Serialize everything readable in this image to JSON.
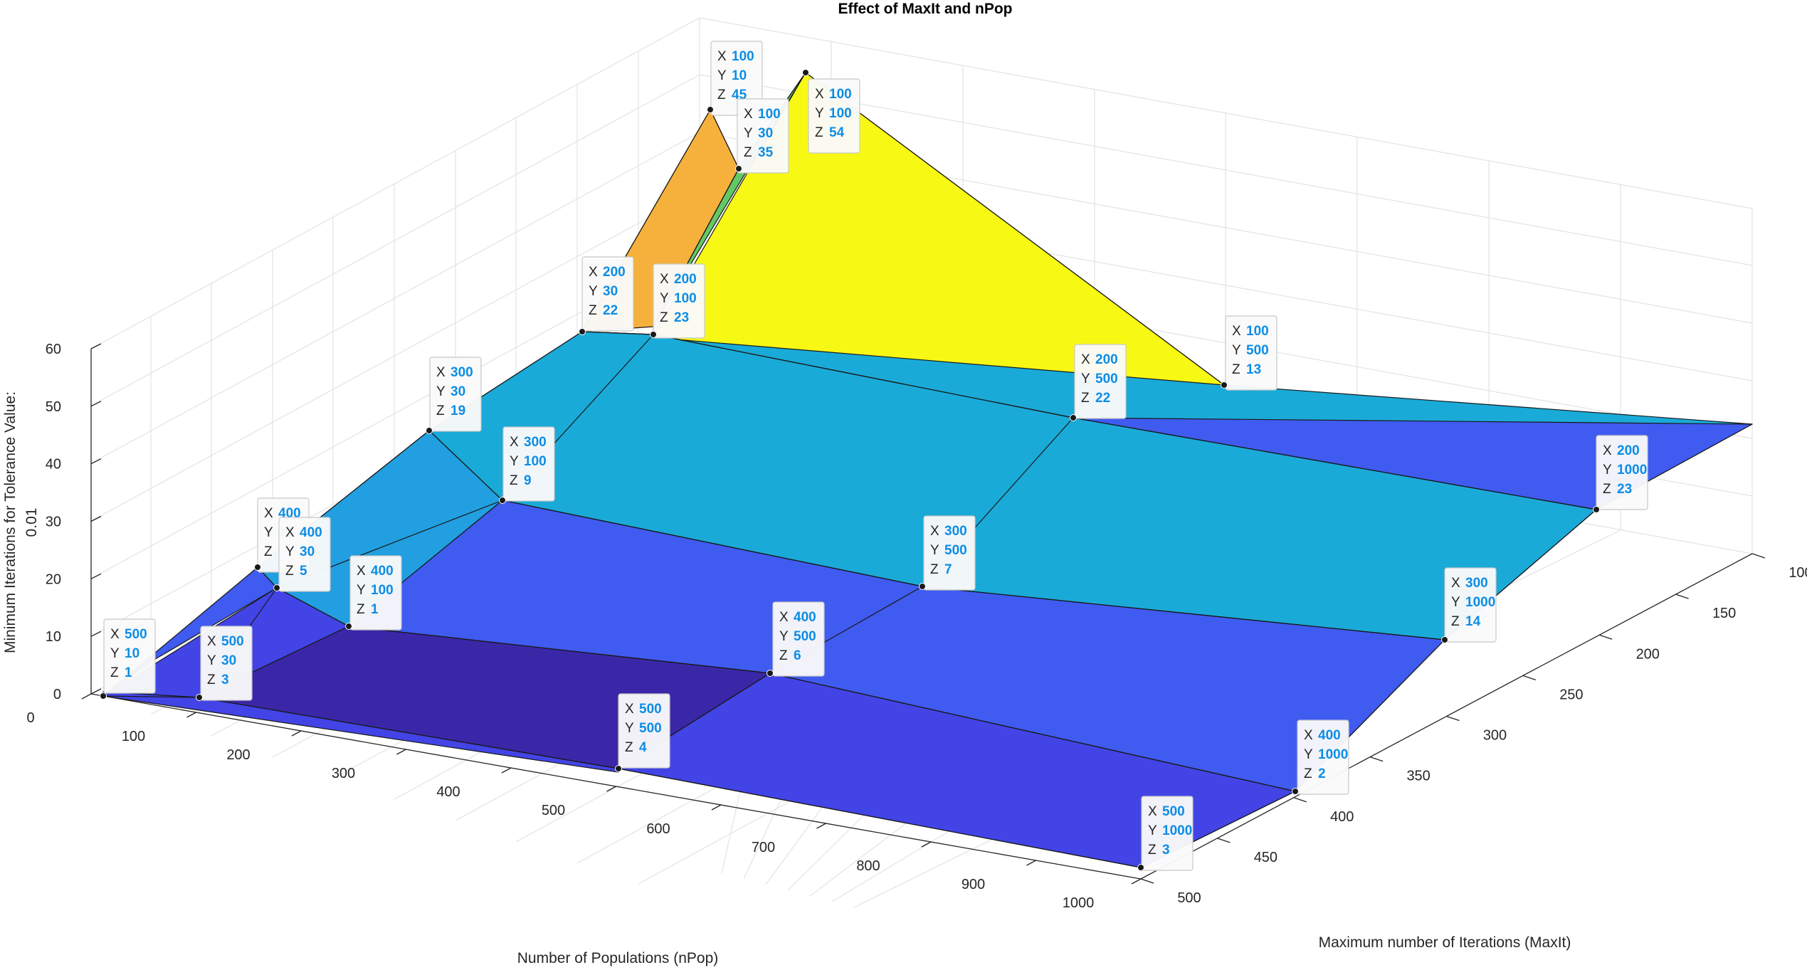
{
  "chart_data": {
    "type": "surface",
    "title": "Effect of MaxIt and nPop",
    "xlabel": "Maximum number of Iterations (MaxIt)",
    "ylabel": "Number of Populations (nPop)",
    "zlabel": "Minimum Iterations for Tolerance Value: 0.01",
    "zlabel_lines": [
      "Minimum Iterations for Tolerance Value:",
      "0.01"
    ],
    "x_values": [
      100,
      200,
      300,
      400,
      500
    ],
    "y_values": [
      10,
      30,
      100,
      500,
      1000
    ],
    "z_grid": [
      [
        45,
        35,
        54,
        13,
        null
      ],
      [
        null,
        22,
        23,
        22,
        23
      ],
      [
        null,
        19,
        9,
        7,
        14
      ],
      [
        null,
        5,
        1,
        6,
        2
      ],
      [
        1,
        3,
        null,
        4,
        3
      ]
    ],
    "z_grid_note": "rows = X (MaxIt 100..500), columns = Y (nPop 10,30,100,500,1000); null = not labeled",
    "x_ticks": [
      "100",
      "150",
      "200",
      "250",
      "300",
      "350",
      "400",
      "450",
      "500"
    ],
    "y_ticks": [
      "0",
      "100",
      "200",
      "300",
      "400",
      "500",
      "600",
      "700",
      "800",
      "900",
      "1000"
    ],
    "z_ticks": [
      "0",
      "10",
      "20",
      "30",
      "40",
      "50",
      "60"
    ],
    "xlim": [
      100,
      500
    ],
    "ylim": [
      0,
      1000
    ],
    "zlim": [
      0,
      60
    ],
    "grid": true,
    "colormap": "parula",
    "datatips": [
      {
        "x": 100,
        "y": 10,
        "z": 45
      },
      {
        "x": 100,
        "y": 30,
        "z": 35
      },
      {
        "x": 100,
        "y": 100,
        "z": 54
      },
      {
        "x": 200,
        "y": 30,
        "z": 22
      },
      {
        "x": 200,
        "y": 100,
        "z": 23
      },
      {
        "x": 100,
        "y": 500,
        "z": 13
      },
      {
        "x": 200,
        "y": 500,
        "z": 22
      },
      {
        "x": 300,
        "y": 30,
        "z": 19
      },
      {
        "x": 300,
        "y": 100,
        "z": 9
      },
      {
        "x": 200,
        "y": 1000,
        "z": 23
      },
      {
        "x": 400,
        "y": 10,
        "z": null
      },
      {
        "x": 400,
        "y": 30,
        "z": 5
      },
      {
        "x": 400,
        "y": 100,
        "z": 1
      },
      {
        "x": 300,
        "y": 500,
        "z": 7
      },
      {
        "x": 300,
        "y": 1000,
        "z": 14
      },
      {
        "x": 500,
        "y": 10,
        "z": 1
      },
      {
        "x": 500,
        "y": 30,
        "z": 3
      },
      {
        "x": 400,
        "y": 500,
        "z": 6
      },
      {
        "x": 400,
        "y": 1000,
        "z": 2
      },
      {
        "x": 500,
        "y": 500,
        "z": 4
      },
      {
        "x": 500,
        "y": 1000,
        "z": 3
      }
    ],
    "tip_key_labels": {
      "x": "X",
      "y": "Y",
      "z": "Z"
    },
    "colors": {
      "value_text": "#0c8de6",
      "key_text": "#262626",
      "grid": "#e3e3e3",
      "axis": "#262626",
      "face_peak_orange": "#f6b13c",
      "face_peak_green": "#63c964",
      "face_yellow": "#f8f815",
      "face_cyan": "#1aaad8",
      "face_sky": "#219fe0",
      "face_blue": "#3f5bf0",
      "face_indigo": "#4244e6",
      "face_dark": "#3a27a8"
    }
  }
}
